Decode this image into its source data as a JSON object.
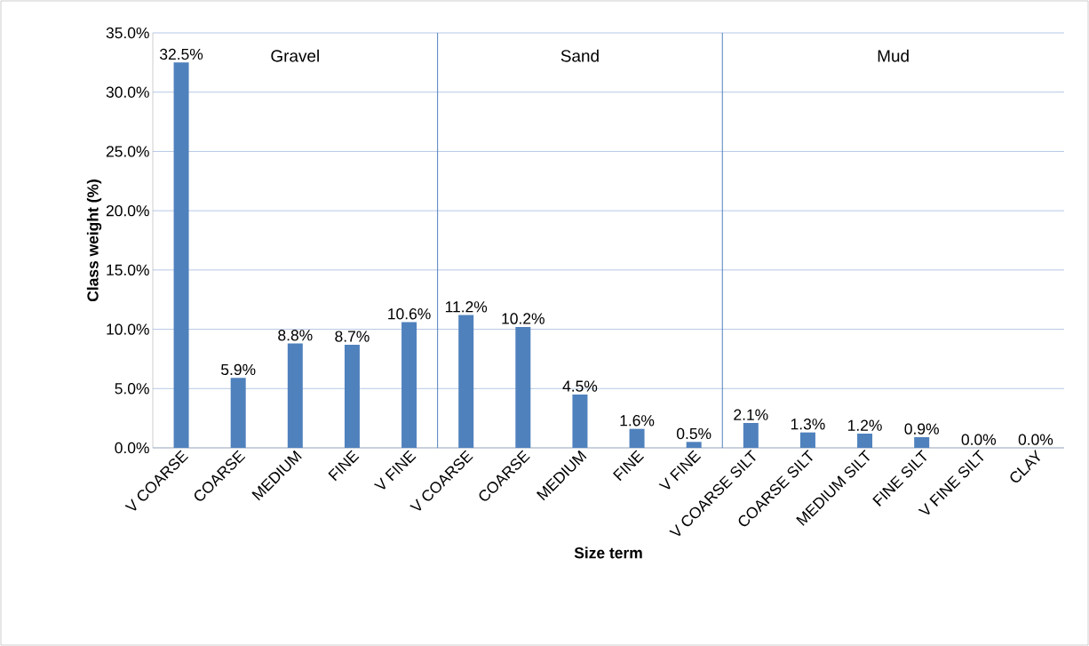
{
  "chart_data": {
    "type": "bar",
    "xlabel": "Size term",
    "ylabel": "Class weight (%)",
    "categories": [
      "V COARSE",
      "COARSE",
      "MEDIUM",
      "FINE",
      "V FINE",
      "V COARSE",
      "COARSE",
      "MEDIUM",
      "FINE",
      "V FINE",
      "V COARSE SILT",
      "COARSE SILT",
      "MEDIUM SILT",
      "FINE SILT",
      "V FINE SILT",
      "CLAY"
    ],
    "values": [
      32.5,
      5.9,
      8.8,
      8.7,
      10.6,
      11.2,
      10.2,
      4.5,
      1.6,
      0.5,
      2.1,
      1.3,
      1.2,
      0.9,
      0.0,
      0.0
    ],
    "value_labels": [
      "32.5%",
      "5.9%",
      "8.8%",
      "8.7%",
      "10.6%",
      "11.2%",
      "10.2%",
      "4.5%",
      "1.6%",
      "0.5%",
      "2.1%",
      "1.3%",
      "1.2%",
      "0.9%",
      "0.0%",
      "0.0%"
    ],
    "color": "#4f81bd",
    "ylim": [
      0,
      35
    ],
    "yticks": [
      {
        "value": 0,
        "label": "0.0%"
      },
      {
        "value": 5,
        "label": "5.0%"
      },
      {
        "value": 10,
        "label": "10.0%"
      },
      {
        "value": 15,
        "label": "15.0%"
      },
      {
        "value": 20,
        "label": "20.0%"
      },
      {
        "value": 25,
        "label": "25.0%"
      },
      {
        "value": 30,
        "label": "30.0%"
      },
      {
        "value": 35,
        "label": "35.0%"
      }
    ],
    "grid": "y",
    "annotations": [
      "Gravel",
      "Sand",
      "Mud"
    ]
  }
}
